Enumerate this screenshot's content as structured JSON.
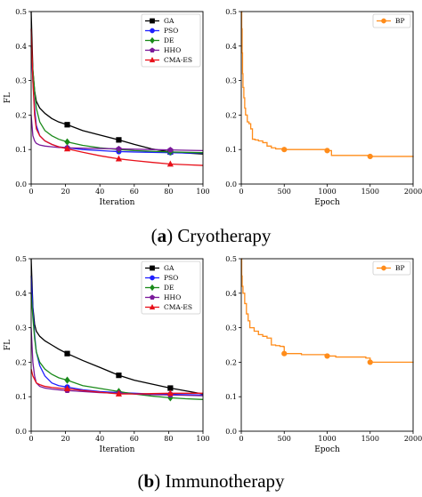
{
  "captions": [
    {
      "letter": "a",
      "text": "Cryotherapy"
    },
    {
      "letter": "b",
      "text": "Immunotherapy"
    }
  ],
  "colors": {
    "GA": "#000000",
    "PSO": "#1f1fff",
    "DE": "#1a8a1a",
    "HHO": "#7a1a9a",
    "CMA-ES": "#e8101a",
    "BP": "#ff8c1a"
  },
  "chart_data": [
    {
      "id": "cryo-iter",
      "type": "line",
      "xlabel": "Iteration",
      "ylabel": "FL",
      "xlim": [
        0,
        100
      ],
      "ylim": [
        0,
        0.5
      ],
      "xticks": [
        0,
        20,
        40,
        60,
        80,
        100
      ],
      "yticks": [
        0.0,
        0.1,
        0.2,
        0.3,
        0.4,
        0.5
      ],
      "legend_position": "top-right",
      "series": [
        {
          "name": "GA",
          "marker": "square",
          "x": [
            0,
            1,
            2,
            3,
            5,
            8,
            12,
            16,
            21,
            30,
            40,
            51,
            60,
            70,
            81,
            90,
            100
          ],
          "y": [
            0.5,
            0.33,
            0.27,
            0.24,
            0.22,
            0.205,
            0.19,
            0.18,
            0.172,
            0.155,
            0.142,
            0.128,
            0.115,
            0.102,
            0.093,
            0.09,
            0.087
          ],
          "markers_x": [
            21,
            51,
            81
          ]
        },
        {
          "name": "PSO",
          "marker": "circle",
          "x": [
            0,
            1,
            2,
            3,
            5,
            8,
            12,
            16,
            21,
            30,
            40,
            51,
            60,
            70,
            81,
            90,
            100
          ],
          "y": [
            0.4,
            0.3,
            0.22,
            0.17,
            0.14,
            0.125,
            0.115,
            0.108,
            0.105,
            0.1,
            0.097,
            0.094,
            0.093,
            0.092,
            0.091,
            0.09,
            0.09
          ],
          "markers_x": [
            21,
            51,
            81
          ]
        },
        {
          "name": "DE",
          "marker": "diamond",
          "x": [
            0,
            1,
            2,
            3,
            5,
            8,
            12,
            16,
            21,
            30,
            40,
            51,
            60,
            70,
            81,
            90,
            100
          ],
          "y": [
            0.4,
            0.33,
            0.27,
            0.22,
            0.18,
            0.155,
            0.14,
            0.13,
            0.122,
            0.112,
            0.105,
            0.1,
            0.097,
            0.095,
            0.093,
            0.092,
            0.091
          ],
          "markers_x": [
            21,
            51,
            81
          ]
        },
        {
          "name": "HHO",
          "marker": "pentagon",
          "x": [
            0,
            1,
            2,
            3,
            5,
            8,
            12,
            16,
            21,
            30,
            40,
            51,
            60,
            70,
            81,
            90,
            100
          ],
          "y": [
            0.2,
            0.14,
            0.125,
            0.118,
            0.113,
            0.11,
            0.108,
            0.106,
            0.105,
            0.104,
            0.103,
            0.102,
            0.101,
            0.1,
            0.099,
            0.098,
            0.097
          ],
          "markers_x": [
            21,
            51,
            81
          ]
        },
        {
          "name": "CMA-ES",
          "marker": "triangle",
          "x": [
            0,
            1,
            2,
            3,
            5,
            8,
            12,
            16,
            21,
            30,
            40,
            51,
            60,
            70,
            81,
            90,
            100
          ],
          "y": [
            0.45,
            0.3,
            0.2,
            0.16,
            0.14,
            0.125,
            0.115,
            0.108,
            0.102,
            0.092,
            0.082,
            0.073,
            0.068,
            0.063,
            0.058,
            0.056,
            0.054
          ],
          "markers_x": [
            21,
            51,
            81
          ]
        }
      ]
    },
    {
      "id": "cryo-epoch",
      "type": "line",
      "xlabel": "Epoch",
      "ylabel": "",
      "xlim": [
        0,
        2000
      ],
      "ylim": [
        0,
        0.5
      ],
      "xticks": [
        0,
        500,
        1000,
        1500,
        2000
      ],
      "yticks": [
        0.0,
        0.1,
        0.2,
        0.3,
        0.4,
        0.5
      ],
      "legend_position": "top-right",
      "series": [
        {
          "name": "BP",
          "marker": "circle",
          "step": true,
          "x": [
            0,
            5,
            10,
            15,
            20,
            30,
            40,
            50,
            70,
            90,
            110,
            130,
            160,
            200,
            250,
            300,
            350,
            400,
            500,
            700,
            1000,
            1050,
            1500,
            2000
          ],
          "y": [
            0.5,
            0.45,
            0.38,
            0.32,
            0.28,
            0.25,
            0.22,
            0.2,
            0.18,
            0.175,
            0.16,
            0.13,
            0.128,
            0.125,
            0.12,
            0.11,
            0.105,
            0.102,
            0.1,
            0.1,
            0.097,
            0.083,
            0.08,
            0.078
          ],
          "markers_x": [
            500,
            1000,
            1500
          ]
        }
      ]
    },
    {
      "id": "immuno-iter",
      "type": "line",
      "xlabel": "Iteration",
      "ylabel": "FL",
      "xlim": [
        0,
        100
      ],
      "ylim": [
        0,
        0.5
      ],
      "xticks": [
        0,
        20,
        40,
        60,
        80,
        100
      ],
      "yticks": [
        0.0,
        0.1,
        0.2,
        0.3,
        0.4,
        0.5
      ],
      "legend_position": "top-right",
      "series": [
        {
          "name": "GA",
          "marker": "square",
          "x": [
            0,
            1,
            2,
            3,
            5,
            8,
            12,
            16,
            21,
            30,
            40,
            51,
            60,
            70,
            81,
            90,
            100
          ],
          "y": [
            0.5,
            0.36,
            0.31,
            0.29,
            0.275,
            0.262,
            0.25,
            0.238,
            0.225,
            0.205,
            0.185,
            0.162,
            0.148,
            0.137,
            0.125,
            0.117,
            0.108
          ],
          "markers_x": [
            21,
            51,
            81
          ]
        },
        {
          "name": "PSO",
          "marker": "circle",
          "x": [
            0,
            1,
            2,
            3,
            5,
            8,
            12,
            16,
            21,
            30,
            40,
            51,
            60,
            70,
            81,
            90,
            100
          ],
          "y": [
            0.45,
            0.35,
            0.28,
            0.23,
            0.19,
            0.16,
            0.14,
            0.132,
            0.128,
            0.12,
            0.115,
            0.112,
            0.11,
            0.108,
            0.107,
            0.106,
            0.105
          ],
          "markers_x": [
            21,
            51,
            81
          ]
        },
        {
          "name": "DE",
          "marker": "diamond",
          "x": [
            0,
            1,
            2,
            3,
            5,
            8,
            12,
            16,
            21,
            30,
            40,
            51,
            60,
            70,
            81,
            90,
            100
          ],
          "y": [
            0.4,
            0.33,
            0.27,
            0.23,
            0.2,
            0.18,
            0.165,
            0.155,
            0.148,
            0.132,
            0.124,
            0.115,
            0.108,
            0.102,
            0.097,
            0.094,
            0.092
          ],
          "markers_x": [
            21,
            51,
            81
          ]
        },
        {
          "name": "HHO",
          "marker": "pentagon",
          "x": [
            0,
            1,
            2,
            3,
            5,
            8,
            12,
            16,
            21,
            30,
            40,
            51,
            60,
            70,
            81,
            90,
            100
          ],
          "y": [
            0.3,
            0.2,
            0.16,
            0.14,
            0.13,
            0.125,
            0.122,
            0.12,
            0.118,
            0.115,
            0.112,
            0.11,
            0.108,
            0.106,
            0.105,
            0.104,
            0.103
          ],
          "markers_x": [
            21,
            51,
            81
          ]
        },
        {
          "name": "CMA-ES",
          "marker": "triangle",
          "x": [
            0,
            1,
            2,
            3,
            5,
            8,
            12,
            16,
            21,
            30,
            40,
            51,
            60,
            70,
            81,
            90,
            100
          ],
          "y": [
            0.18,
            0.16,
            0.15,
            0.14,
            0.135,
            0.13,
            0.127,
            0.125,
            0.123,
            0.118,
            0.113,
            0.108,
            0.108,
            0.109,
            0.11,
            0.11,
            0.11
          ],
          "markers_x": [
            21,
            51,
            81
          ]
        }
      ]
    },
    {
      "id": "immuno-epoch",
      "type": "line",
      "xlabel": "Epoch",
      "ylabel": "",
      "xlim": [
        0,
        2000
      ],
      "ylim": [
        0,
        0.5
      ],
      "xticks": [
        0,
        500,
        1000,
        1500,
        2000
      ],
      "yticks": [
        0.0,
        0.1,
        0.2,
        0.3,
        0.4,
        0.5
      ],
      "legend_position": "top-right",
      "series": [
        {
          "name": "BP",
          "marker": "circle",
          "step": true,
          "x": [
            0,
            5,
            10,
            20,
            40,
            60,
            80,
            100,
            150,
            200,
            250,
            300,
            350,
            400,
            450,
            490,
            500,
            700,
            1000,
            1100,
            1450,
            1500,
            2000
          ],
          "y": [
            0.5,
            0.45,
            0.42,
            0.4,
            0.37,
            0.34,
            0.32,
            0.3,
            0.29,
            0.28,
            0.275,
            0.27,
            0.25,
            0.248,
            0.246,
            0.245,
            0.225,
            0.222,
            0.218,
            0.215,
            0.212,
            0.2,
            0.198
          ],
          "markers_x": [
            500,
            1000,
            1500
          ]
        }
      ]
    }
  ]
}
